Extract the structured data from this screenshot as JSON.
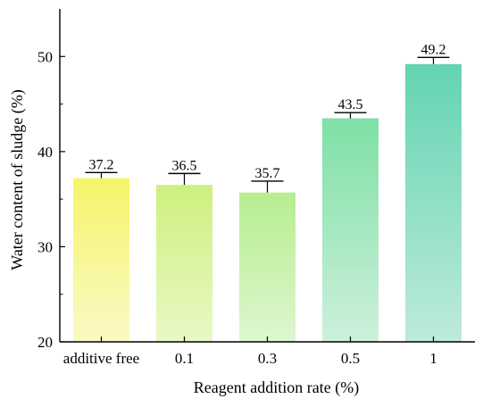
{
  "chart_data": {
    "type": "bar",
    "xlabel": "Reagent addition rate (%)",
    "ylabel": "Water content of sludge (%)",
    "ylim": [
      20,
      55
    ],
    "yticks": [
      20,
      30,
      40,
      50
    ],
    "categories": [
      "additive free",
      "0.1",
      "0.3",
      "0.5",
      "1"
    ],
    "values": [
      37.2,
      36.5,
      35.7,
      43.5,
      49.2
    ],
    "value_labels": [
      "37.2",
      "36.5",
      "35.7",
      "43.5",
      "49.2"
    ],
    "error_upper": [
      0.6,
      1.2,
      1.2,
      0.6,
      0.7
    ],
    "bar_colors": [
      {
        "top": "#f5f56a",
        "bottom": "#fbf9c4"
      },
      {
        "top": "#cdf07e",
        "bottom": "#eaf8c6"
      },
      {
        "top": "#b7ee8f",
        "bottom": "#def6d0"
      },
      {
        "top": "#7fe0a6",
        "bottom": "#cdf0db"
      },
      {
        "top": "#63d4b1",
        "bottom": "#bdeadc"
      }
    ],
    "grid": false,
    "legend": "none"
  }
}
